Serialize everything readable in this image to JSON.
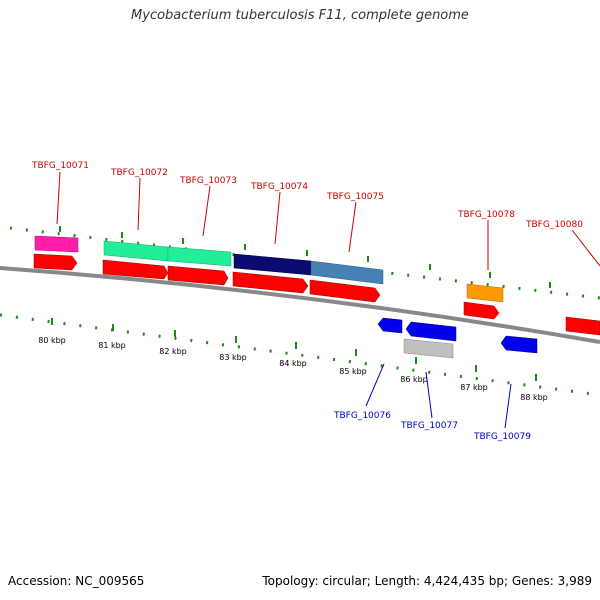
{
  "title": "Mycobacterium tuberculosis F11, complete genome",
  "footer": {
    "accession": "Accession: NC_009565",
    "summary": "Topology: circular; Length: 4,424,435 bp; Genes: 3,989"
  },
  "scale_labels": [
    "80 kbp",
    "81 kbp",
    "82 kbp",
    "83 kbp",
    "84 kbp",
    "85 kbp",
    "86 kbp",
    "87 kbp",
    "88 kbp"
  ],
  "genes": {
    "plus": [
      {
        "label": "TBFG_10071",
        "color": "#ff1fa8"
      },
      {
        "label": "TBFG_10072",
        "color": "#22ee99"
      },
      {
        "label": "TBFG_10073",
        "color": "#22ee99"
      },
      {
        "label": "TBFG_10074",
        "color": "#0a0a70"
      },
      {
        "label": "TBFG_10075",
        "color": "#4682b4"
      },
      {
        "label": "TBFG_10078",
        "color": "#ff9900"
      },
      {
        "label": "TBFG_10080",
        "color": "#ff0000"
      }
    ],
    "minus": [
      {
        "label": "TBFG_10076",
        "color": "#0000ee"
      },
      {
        "label": "TBFG_10077",
        "color": "#c0c0c0"
      },
      {
        "label": "TBFG_10079",
        "color": "#0000ee"
      }
    ]
  },
  "colors": {
    "cds": "#ff0000",
    "backbone": "#888888",
    "gc_ticks": "#1a8a1a",
    "plus_label": "#cc0000",
    "minus_label": "#0000cc"
  }
}
